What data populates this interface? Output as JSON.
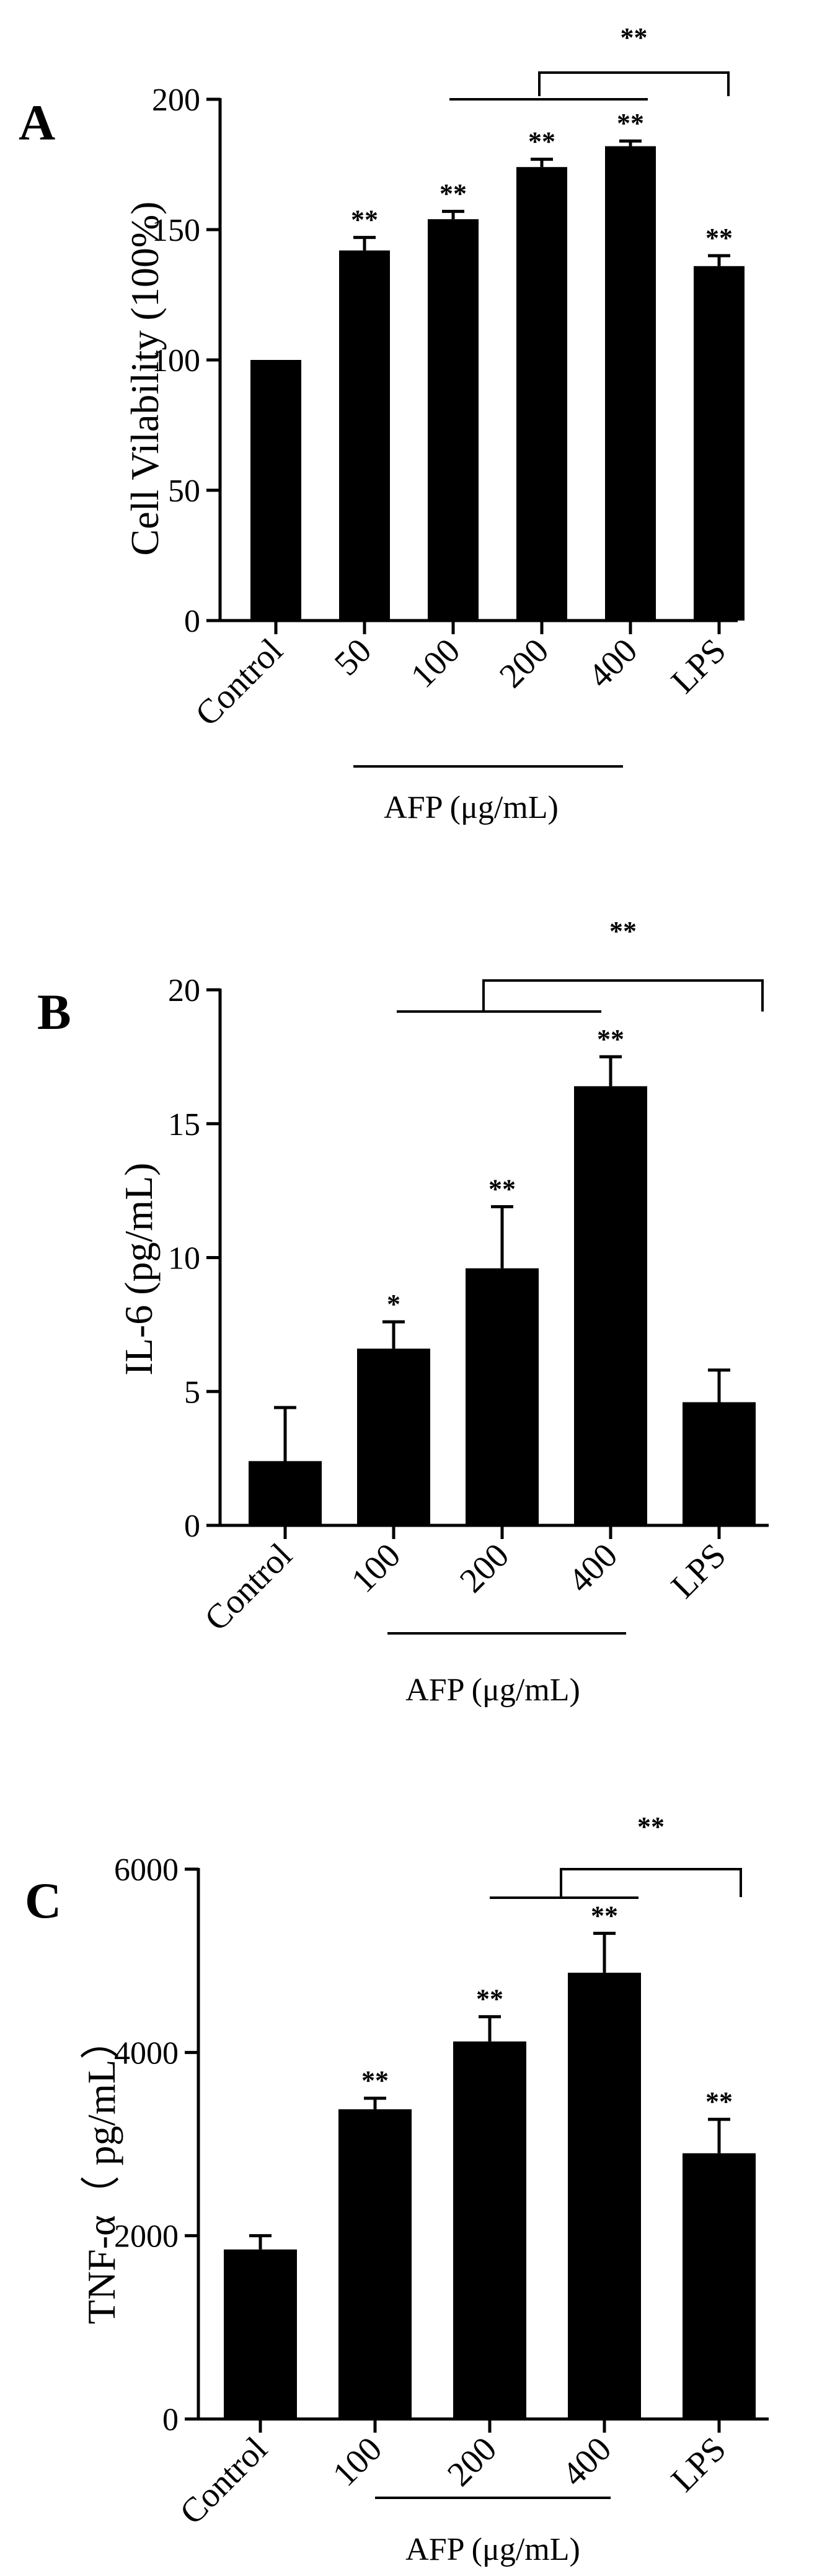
{
  "chart_data": [
    {
      "type": "bar",
      "panel": "A",
      "ylabel": "Cell Vilability (100%)",
      "group_label": "AFP (μg/mL)",
      "categories": [
        "Control",
        "50",
        "100",
        "200",
        "400",
        "LPS"
      ],
      "values": [
        100,
        142,
        154,
        174,
        182,
        136
      ],
      "errors": [
        0,
        5,
        3,
        3,
        2,
        4
      ],
      "significance": [
        "",
        "**",
        "**",
        "**",
        "**",
        "**"
      ],
      "comparison_label": "**",
      "ylim": [
        0,
        200
      ],
      "yticks": [
        0,
        50,
        100,
        150,
        200
      ]
    },
    {
      "type": "bar",
      "panel": "B",
      "ylabel": "IL-6 (pg/mL)",
      "group_label": "AFP (μg/mL)",
      "categories": [
        "Control",
        "100",
        "200",
        "400",
        "LPS"
      ],
      "values": [
        2.4,
        6.6,
        9.6,
        16.4,
        4.6
      ],
      "errors": [
        2.0,
        1.0,
        2.3,
        1.1,
        1.2
      ],
      "significance": [
        "",
        "*",
        "**",
        "**",
        ""
      ],
      "comparison_label": "**",
      "ylim": [
        0,
        20
      ],
      "yticks": [
        0,
        5,
        10,
        15,
        20
      ]
    },
    {
      "type": "bar",
      "panel": "C",
      "ylabel": "TNF-α（ pg/mL）",
      "group_label": "AFP (μg/mL)",
      "categories": [
        "Control",
        "100",
        "200",
        "400",
        "LPS"
      ],
      "values": [
        1850,
        3380,
        4120,
        4870,
        2900
      ],
      "errors": [
        150,
        120,
        270,
        430,
        370
      ],
      "significance": [
        "",
        "**",
        "**",
        "**",
        "**"
      ],
      "comparison_label": "**",
      "ylim": [
        0,
        6000
      ],
      "yticks": [
        0,
        2000,
        4000,
        6000
      ]
    }
  ]
}
